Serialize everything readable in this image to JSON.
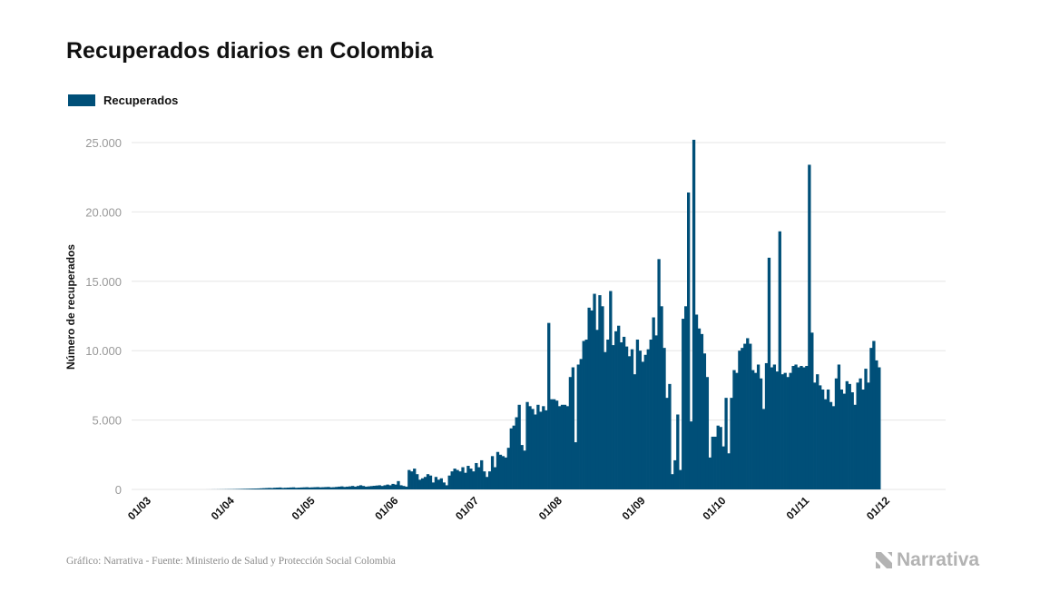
{
  "header": {
    "title": "Recuperados diarios en Colombia"
  },
  "footer": {
    "source": "Gráfico: Narrativa - Fuente: Ministerio de Salud y Protección Social Colombia"
  },
  "logo": {
    "word": "Narrativa"
  },
  "colors": {
    "bar": "#004f78",
    "grid": "#e6e6e6",
    "tick_text": "#999999"
  },
  "chart_data": {
    "type": "bar",
    "title": "Recuperados diarios en Colombia",
    "xlabel": "",
    "ylabel": "Número de recuperados",
    "ylim": [
      0,
      25000
    ],
    "yticks": [
      0,
      5000,
      10000,
      15000,
      20000,
      25000
    ],
    "ytick_labels": [
      "0",
      "5.000",
      "10.000",
      "15.000",
      "20.000",
      "25.000"
    ],
    "grid": true,
    "legend": "top-left",
    "series": [
      {
        "name": "Recuperados"
      }
    ],
    "x_tick_labels": [
      "01/03",
      "01/04",
      "01/05",
      "01/06",
      "01/07",
      "01/08",
      "01/09",
      "01/10",
      "01/11",
      "01/12"
    ],
    "x_start": "2020-03-01",
    "x_end": "2020-12-06",
    "values": [
      0,
      0,
      0,
      0,
      0,
      0,
      0,
      0,
      0,
      0,
      0,
      0,
      0,
      0,
      0,
      0,
      0,
      0,
      0,
      0,
      0,
      0,
      2,
      2,
      5,
      5,
      8,
      10,
      12,
      15,
      18,
      20,
      25,
      30,
      35,
      40,
      45,
      50,
      55,
      60,
      65,
      70,
      80,
      90,
      100,
      110,
      100,
      120,
      130,
      140,
      110,
      120,
      130,
      140,
      150,
      120,
      130,
      140,
      150,
      160,
      140,
      150,
      160,
      170,
      150,
      160,
      170,
      180,
      150,
      160,
      180,
      200,
      220,
      180,
      200,
      220,
      250,
      200,
      250,
      300,
      250,
      200,
      220,
      240,
      260,
      280,
      300,
      250,
      300,
      350,
      300,
      400,
      350,
      600,
      300,
      250,
      200,
      1400,
      1300,
      1500,
      1100,
      700,
      800,
      900,
      1100,
      1000,
      500,
      900,
      700,
      800,
      500,
      300,
      1000,
      1300,
      1500,
      1400,
      1300,
      1600,
      1200,
      1700,
      1500,
      1300,
      1900,
      1600,
      2100,
      1300,
      900,
      1300,
      2400,
      1600,
      2700,
      2500,
      2400,
      2300,
      3000,
      4400,
      4600,
      5200,
      6100,
      3200,
      2800,
      6300,
      6000,
      5800,
      5400,
      6100,
      5600,
      6000,
      5700,
      12000,
      6500,
      6500,
      6400,
      6000,
      6100,
      6100,
      6000,
      8100,
      8800,
      3400,
      9000,
      9400,
      10700,
      10800,
      13100,
      12900,
      14100,
      11500,
      14000,
      13200,
      9900,
      10800,
      14300,
      10400,
      11400,
      11800,
      10600,
      11000,
      10300,
      9600,
      10100,
      8300,
      10800,
      10000,
      9200,
      9700,
      10100,
      10800,
      12400,
      11100,
      16600,
      13200,
      10200,
      6600,
      7600,
      1100,
      2100,
      5400,
      1400,
      12300,
      13200,
      21400,
      4900,
      25200,
      12600,
      11600,
      11200,
      9800,
      8100,
      2300,
      3800,
      3800,
      4600,
      4500,
      3100,
      6600,
      2600,
      6600,
      8600,
      8400,
      10000,
      10200,
      10500,
      10900,
      10500,
      8600,
      8400,
      9000,
      8000,
      5800,
      9100,
      16700,
      8800,
      9000,
      8500,
      18600,
      8300,
      8400,
      8100,
      8400,
      8900,
      9000,
      8800,
      8900,
      8800,
      8900,
      23400,
      11300,
      7700,
      8300,
      7500,
      7200,
      6500,
      7200,
      6300,
      6000,
      8000,
      9000,
      7200,
      6900,
      7800,
      7600,
      7000,
      6100,
      7700,
      8000,
      7200,
      8700,
      7700,
      10200,
      10700,
      9300,
      8800
    ]
  }
}
